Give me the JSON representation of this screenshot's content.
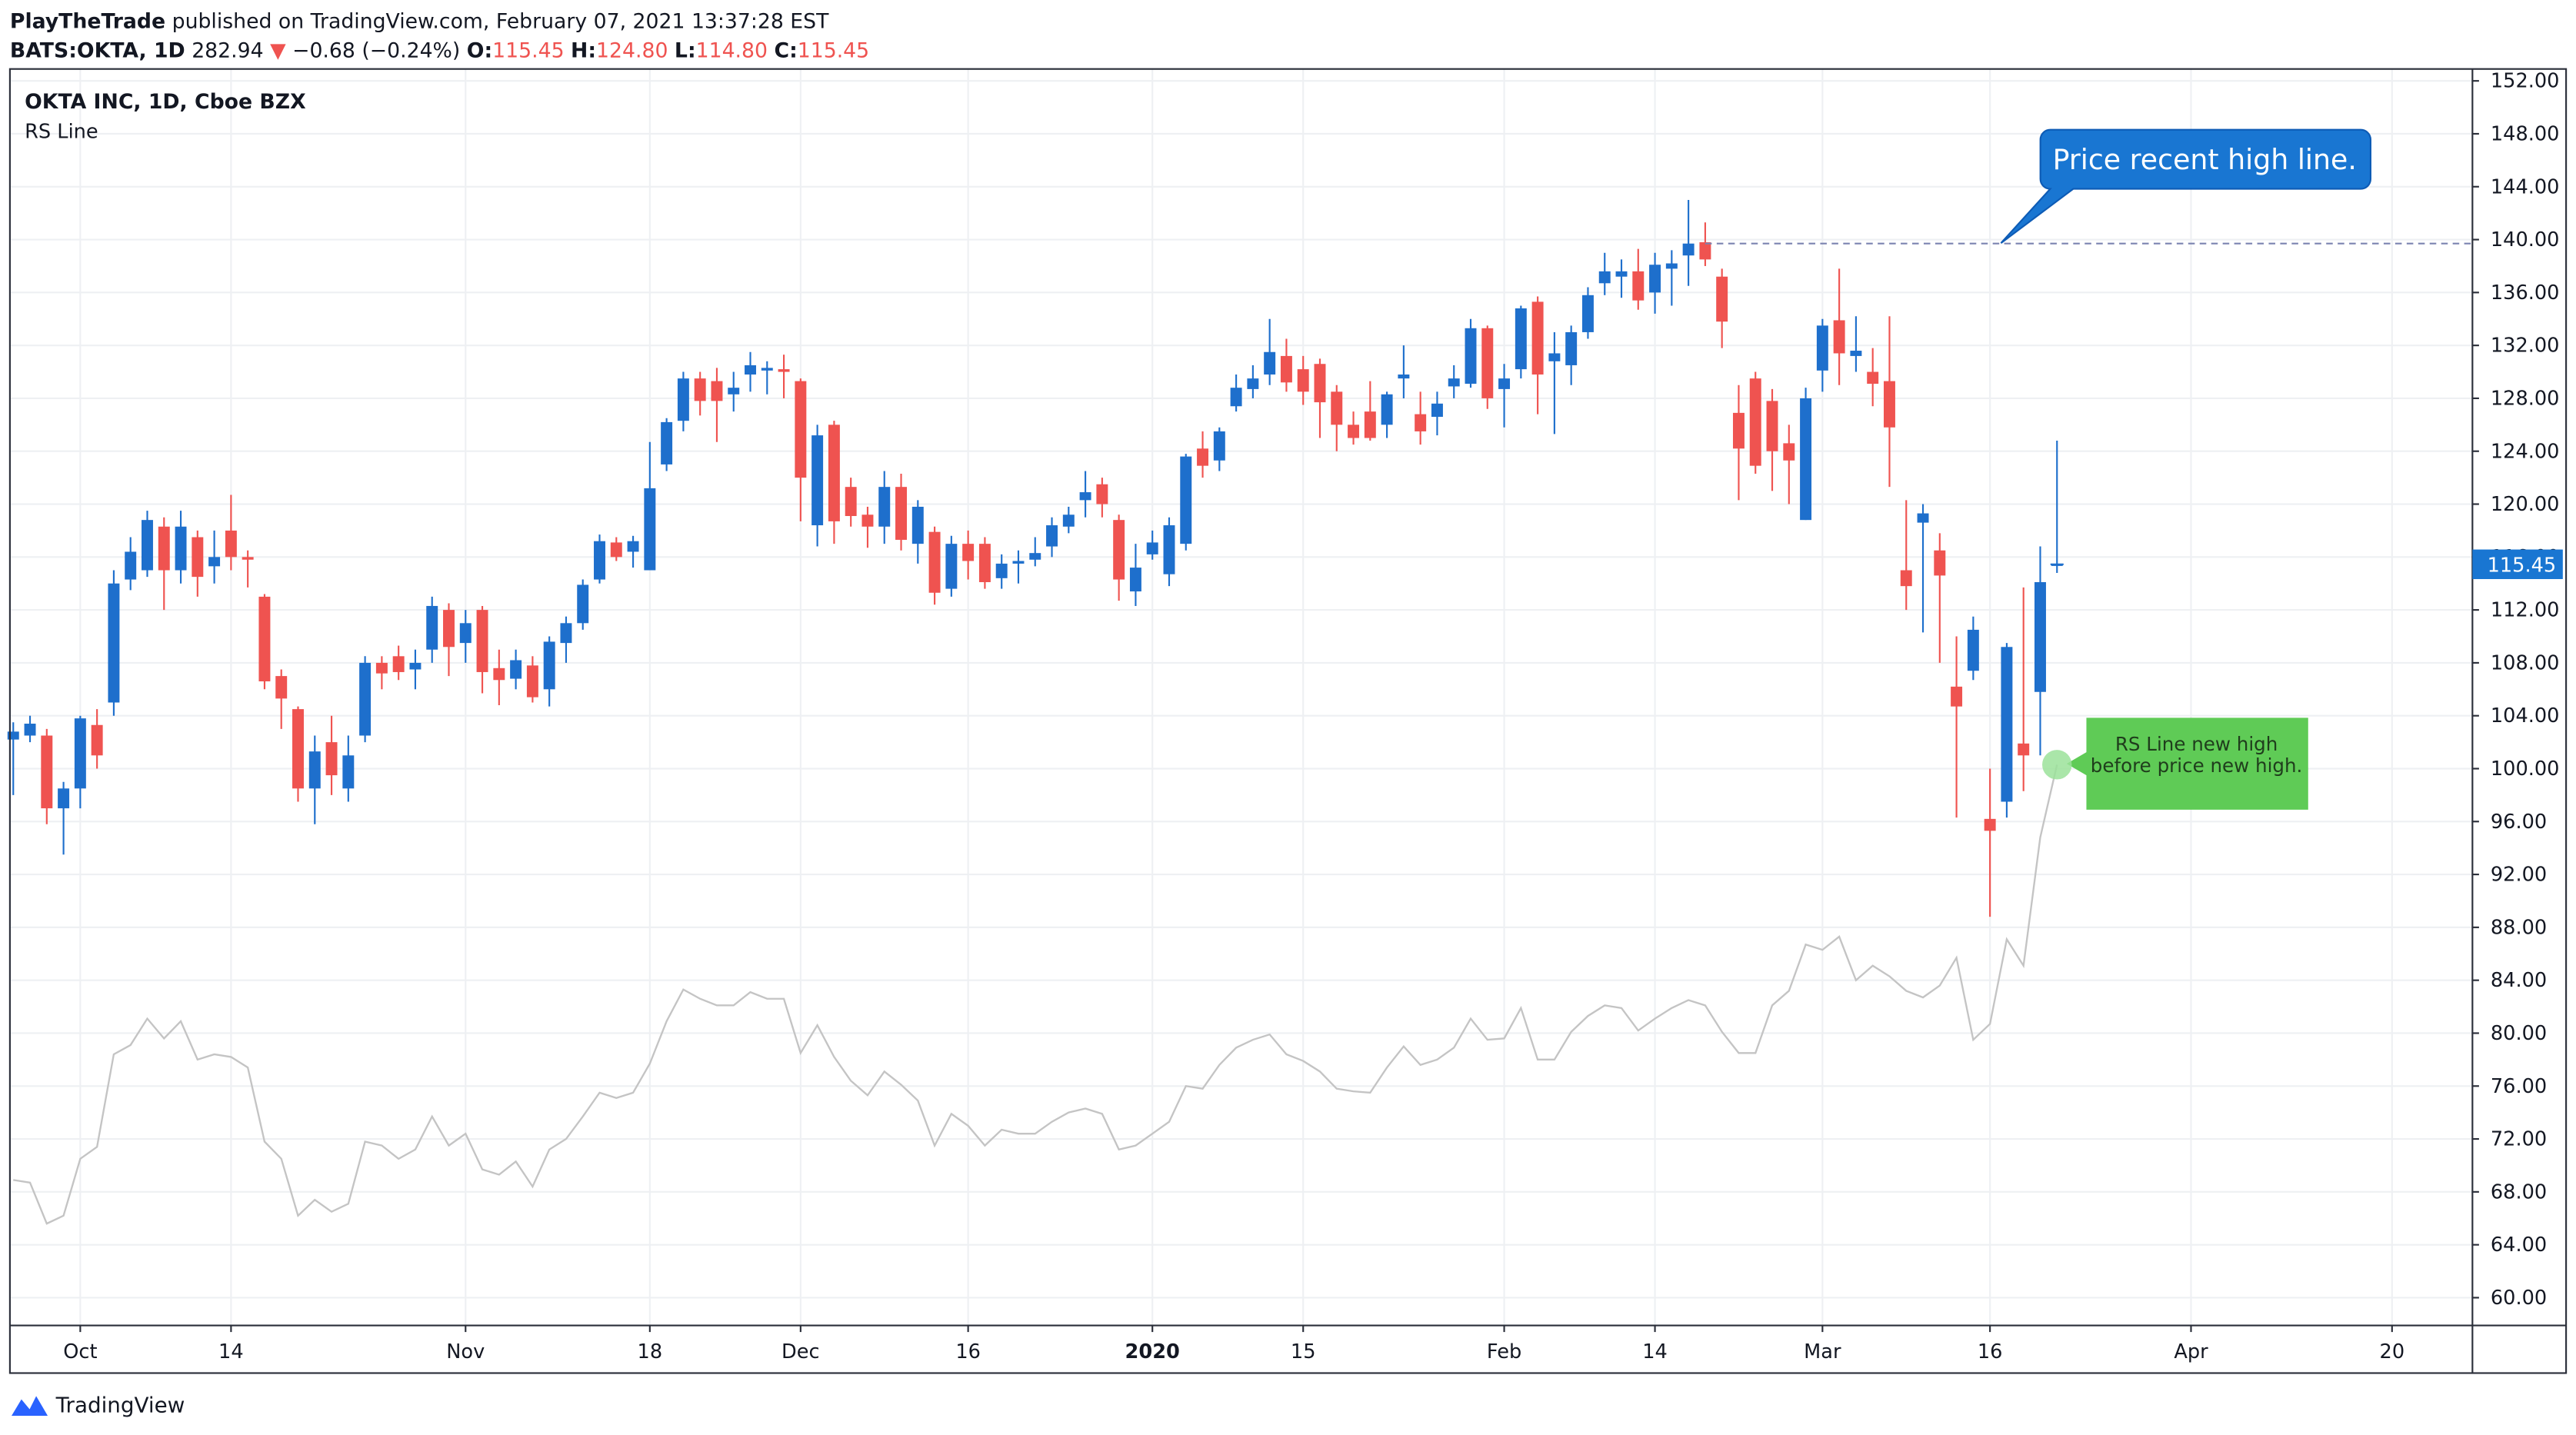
{
  "page_header": {
    "author": "PlayTheTrade",
    "published": "published on TradingView.com, February 07, 2021 13:37:28 EST",
    "symbol": "BATS:OKTA, 1D",
    "last": "282.94",
    "arrow": "▼",
    "change": "−0.68 (−0.24%)",
    "o_label": "O:",
    "o": "115.45",
    "h_label": "H:",
    "h": "124.80",
    "l_label": "L:",
    "l": "114.80",
    "c_label": "C:",
    "c": "115.45"
  },
  "chart_data": {
    "type": "candlestick",
    "title": "OKTA INC, 1D, Cboe BZX",
    "up_color": "#1e6fcc",
    "down_color": "#ef5350",
    "x": [
      0,
      1,
      2,
      3,
      4,
      5,
      6,
      7,
      8,
      9,
      10,
      11,
      12,
      13,
      14,
      15,
      16,
      17,
      18,
      19,
      20,
      21,
      22,
      23,
      24,
      25,
      26,
      27,
      28,
      29,
      30,
      31,
      32,
      33,
      34,
      35,
      36,
      37,
      38,
      39,
      40,
      41,
      42,
      43,
      44,
      45,
      46,
      47,
      48,
      49,
      50,
      51,
      52,
      53,
      54,
      55,
      56,
      57,
      58,
      59,
      60,
      61,
      62,
      63,
      64,
      65,
      66,
      67,
      68,
      69,
      70,
      71,
      72,
      73,
      74,
      75,
      76,
      77,
      78,
      79,
      80,
      81,
      82,
      83,
      84,
      85,
      86,
      87,
      88,
      89,
      90,
      91,
      92,
      93,
      94,
      95,
      96,
      97,
      98,
      99,
      100,
      101,
      102,
      103,
      104,
      105,
      106,
      107,
      108,
      109,
      110,
      111,
      112,
      113,
      114,
      115,
      116,
      117,
      118,
      119,
      120,
      121,
      122
    ],
    "open": [
      102.2,
      102.5,
      102.5,
      97,
      98.5,
      103.3,
      105,
      114.3,
      115,
      118.3,
      115,
      117.5,
      115.3,
      118,
      116,
      113,
      107,
      104.5,
      98.5,
      102,
      98.5,
      102.5,
      108,
      108.5,
      107.5,
      109,
      112,
      109.5,
      112,
      107.6,
      106.8,
      107.8,
      106,
      109.5,
      111,
      114.3,
      117.1,
      116.4,
      115,
      123,
      126.3,
      129.5,
      129.3,
      128.3,
      129.8,
      130.1,
      130.2,
      129.3,
      118.4,
      126,
      121.3,
      119.2,
      118.3,
      121.3,
      117,
      117.9,
      113.6,
      117,
      117,
      114.4,
      115.5,
      115.8,
      116.8,
      118.3,
      120.3,
      121.5,
      118.8,
      113.4,
      116.2,
      114.7,
      117,
      124.2,
      123.3,
      127.4,
      128.7,
      129.8,
      131.2,
      130.2,
      130.6,
      128.5,
      126,
      127,
      126,
      129.5,
      126.8,
      126.6,
      128.9,
      129.1,
      133.3,
      128.7,
      130.2,
      135.3,
      130.8,
      130.5,
      133,
      136.7,
      137.2,
      137.6,
      136,
      137.8,
      138.8,
      139.8,
      137.2,
      126.9,
      129.5,
      127.8,
      124.6,
      118.8,
      130.1,
      133.9,
      131.2,
      130,
      129.3,
      115,
      118.6,
      116.5,
      106.2,
      107.4,
      96.2,
      97.5,
      101.9,
      105.8,
      115.45
    ],
    "high": [
      103.5,
      104,
      103,
      99,
      104,
      104.5,
      115,
      117.5,
      119.5,
      119,
      119.5,
      118,
      118,
      120.7,
      116.5,
      113.2,
      107.5,
      104.7,
      102.5,
      104,
      102.5,
      108.5,
      108.5,
      109.3,
      109,
      113,
      112.5,
      112,
      112.3,
      109,
      109,
      108.5,
      110,
      111.5,
      114.3,
      117.7,
      117.5,
      117.6,
      124.7,
      126.5,
      130,
      130,
      130.3,
      130,
      131.5,
      130.8,
      131.3,
      129.5,
      126,
      126.3,
      122,
      119.8,
      122.5,
      122.3,
      120.3,
      118.3,
      117.6,
      118,
      117.5,
      116.2,
      116.5,
      117.5,
      119,
      119.8,
      122.5,
      122,
      119.2,
      117,
      118,
      119,
      123.8,
      125.5,
      125.8,
      129.8,
      130.5,
      134,
      132.5,
      131.2,
      131,
      129,
      127,
      129.3,
      128.5,
      132,
      128.5,
      128.5,
      130.5,
      134,
      133.5,
      130.6,
      135,
      135.7,
      133,
      133.5,
      136.4,
      139,
      138.5,
      139.3,
      139,
      139.2,
      143,
      141.3,
      137.8,
      129,
      130,
      128.7,
      126,
      128.8,
      134,
      137.8,
      134.2,
      131.8,
      134.2,
      120.3,
      120,
      117.8,
      110,
      111.5,
      100,
      109.5,
      113.7,
      116.8,
      124.8
    ],
    "low": [
      98,
      102,
      95.8,
      93.5,
      97,
      100,
      104,
      113.5,
      114.5,
      112,
      114,
      113,
      114,
      115,
      113.7,
      106,
      103,
      97.5,
      95.8,
      98,
      97.5,
      102,
      106,
      106.7,
      106,
      108,
      107,
      108,
      105.7,
      104.8,
      106,
      105,
      104.7,
      108,
      110.5,
      114,
      115.7,
      115.2,
      115,
      122.5,
      125.5,
      126.7,
      124.7,
      127,
      128.5,
      128.3,
      128,
      118.7,
      116.8,
      117,
      118.3,
      116.7,
      117,
      116.5,
      115.5,
      112.4,
      113,
      114.3,
      113.6,
      113.6,
      114,
      115.3,
      116,
      117.8,
      119,
      119,
      112.7,
      112.3,
      115.8,
      113.8,
      116.5,
      122,
      122.5,
      127,
      128,
      129,
      128.5,
      127.5,
      125,
      124,
      124.5,
      124.8,
      125,
      128,
      124.5,
      125.2,
      128,
      128.8,
      127.2,
      125.8,
      129.5,
      126.8,
      125.3,
      129,
      132.5,
      135.8,
      135.6,
      134.7,
      134.4,
      135,
      136.5,
      138,
      131.8,
      120.3,
      122.3,
      121,
      120,
      118.8,
      128.5,
      129,
      130,
      127.4,
      121.3,
      112,
      110.3,
      108,
      96.3,
      106.7,
      88.8,
      96.3,
      98.3,
      101,
      114.8
    ],
    "close": [
      102.8,
      103.4,
      97,
      98.5,
      103.8,
      101,
      114,
      116.4,
      118.8,
      115,
      118.3,
      114.5,
      116,
      116,
      115.8,
      106.6,
      105.3,
      98.5,
      101.3,
      99.5,
      101,
      108,
      107.2,
      107.3,
      108,
      112.3,
      109.2,
      111,
      107.3,
      106.7,
      108.2,
      105.4,
      109.6,
      111,
      113.9,
      117.2,
      116,
      117.2,
      121.2,
      126.2,
      129.5,
      127.8,
      127.8,
      128.8,
      130.5,
      130.3,
      130,
      122,
      125.2,
      118.7,
      119.1,
      118.3,
      121.3,
      117.3,
      119.8,
      113.3,
      117,
      115.7,
      114.1,
      115.5,
      115.7,
      116.3,
      118.4,
      119.2,
      120.9,
      120,
      114.3,
      115.2,
      117.1,
      118.4,
      123.6,
      122.9,
      125.5,
      128.8,
      129.5,
      131.5,
      129.2,
      128.5,
      127.7,
      126,
      125,
      125,
      128.3,
      129.8,
      125.5,
      127.6,
      129.5,
      133.3,
      128,
      129.5,
      134.8,
      129.8,
      131.4,
      133,
      135.8,
      137.6,
      137.6,
      135.4,
      138.1,
      138.2,
      139.7,
      138.5,
      133.8,
      124.2,
      122.9,
      124,
      123.3,
      128,
      133.5,
      131.4,
      131.6,
      129.1,
      125.8,
      113.8,
      119.3,
      114.6,
      104.7,
      110.5,
      95.3,
      109.2,
      101,
      114.1,
      115.45
    ],
    "series": [
      {
        "name": "RS Line",
        "color": "#c4c4c4",
        "values": [
          68.9,
          68.7,
          65.6,
          66.2,
          70.5,
          71.4,
          78.4,
          79.1,
          81.1,
          79.6,
          80.9,
          78,
          78.4,
          78.2,
          77.4,
          71.8,
          70.5,
          66.2,
          67.4,
          66.5,
          67.1,
          71.8,
          71.5,
          70.5,
          71.2,
          73.7,
          71.5,
          72.4,
          69.7,
          69.3,
          70.3,
          68.4,
          71.2,
          72,
          73.7,
          75.5,
          75.1,
          75.5,
          77.7,
          80.9,
          83.3,
          82.6,
          82.1,
          82.1,
          83.1,
          82.6,
          82.6,
          78.5,
          80.6,
          78.2,
          76.4,
          75.3,
          77.1,
          76.1,
          74.9,
          71.5,
          73.9,
          73,
          71.5,
          72.7,
          72.4,
          72.4,
          73.3,
          74,
          74.3,
          73.9,
          71.2,
          71.5,
          72.4,
          73.3,
          76,
          75.8,
          77.6,
          78.9,
          79.5,
          79.9,
          78.4,
          77.9,
          77.1,
          75.8,
          75.6,
          75.5,
          77.4,
          79,
          77.6,
          78,
          78.9,
          81.1,
          79.5,
          79.6,
          81.9,
          78,
          78,
          80.1,
          81.3,
          82.1,
          81.9,
          80.2,
          81.1,
          81.9,
          82.5,
          82.1,
          80.1,
          78.5,
          78.5,
          82.1,
          83.2,
          86.7,
          86.3,
          87.3,
          84,
          85.1,
          84.3,
          83.2,
          82.7,
          83.6,
          85.7,
          79.5,
          80.7,
          87.1,
          85.1,
          94.8,
          100.3
        ]
      }
    ],
    "xlim": [
      -0.2,
      146.8
    ],
    "xticks": [
      {
        "value": 4,
        "label": "Oct"
      },
      {
        "value": 13,
        "label": "14"
      },
      {
        "value": 27,
        "label": "Nov"
      },
      {
        "value": 38,
        "label": "18"
      },
      {
        "value": 47,
        "label": "Dec"
      },
      {
        "value": 57,
        "label": "16"
      },
      {
        "value": 68,
        "label": "2020"
      },
      {
        "value": 77,
        "label": "15"
      },
      {
        "value": 89,
        "label": "Feb"
      },
      {
        "value": 98,
        "label": "14"
      },
      {
        "value": 108,
        "label": "Mar"
      },
      {
        "value": 118,
        "label": "16"
      },
      {
        "value": 130,
        "label": "Apr"
      },
      {
        "value": 142,
        "label": "20"
      }
    ],
    "ylim": [
      57.9,
      152.9
    ],
    "yticks": [
      {
        "value": 60,
        "label": "60.00"
      },
      {
        "value": 64,
        "label": "64.00"
      },
      {
        "value": 68,
        "label": "68.00"
      },
      {
        "value": 72,
        "label": "72.00"
      },
      {
        "value": 76,
        "label": "76.00"
      },
      {
        "value": 80,
        "label": "80.00"
      },
      {
        "value": 84,
        "label": "84.00"
      },
      {
        "value": 88,
        "label": "88.00"
      },
      {
        "value": 92,
        "label": "92.00"
      },
      {
        "value": 96,
        "label": "96.00"
      },
      {
        "value": 100,
        "label": "100.00"
      },
      {
        "value": 104,
        "label": "104.00"
      },
      {
        "value": 108,
        "label": "108.00"
      },
      {
        "value": 112,
        "label": "112.00"
      },
      {
        "value": 116,
        "label": "116.00"
      },
      {
        "value": 120,
        "label": "120.00"
      },
      {
        "value": 124,
        "label": "124.00"
      },
      {
        "value": 128,
        "label": "128.00"
      },
      {
        "value": 132,
        "label": "132.00"
      },
      {
        "value": 136,
        "label": "136.00"
      },
      {
        "value": 140,
        "label": "140.00"
      },
      {
        "value": 144,
        "label": "144.00"
      },
      {
        "value": 148,
        "label": "148.00"
      },
      {
        "value": 152,
        "label": "152.00"
      }
    ],
    "grid": true,
    "last_value": {
      "value": 115.45,
      "label": "115.45"
    },
    "high_line": {
      "value": 139.7,
      "x": 101,
      "label": "Price recent high line."
    },
    "rs_note": [
      "RS Line new high",
      "before price new high."
    ]
  },
  "footer": {
    "brand": "TradingView"
  }
}
